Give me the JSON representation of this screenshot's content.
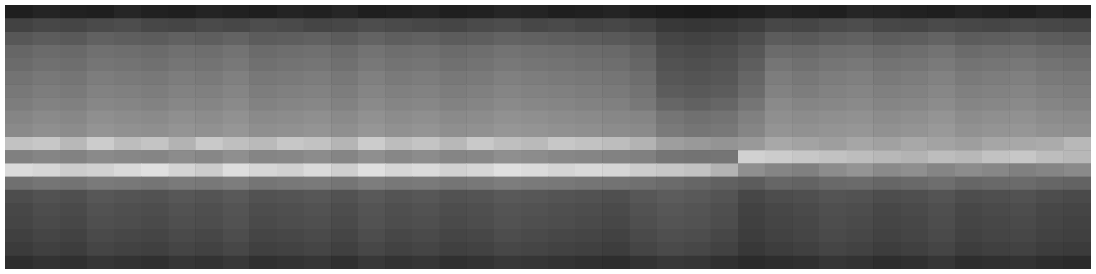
{
  "chart_data": {
    "type": "heatmap",
    "tick_labels": false,
    "xlim": [
      0,
      40
    ],
    "ylim": [
      0,
      20
    ],
    "zlim": [
      0,
      100
    ],
    "cells": [
      [
        12,
        14,
        13,
        12,
        15,
        13,
        12,
        14,
        13,
        12,
        14,
        13,
        15,
        12,
        13,
        14,
        12,
        13,
        15,
        14,
        12,
        13,
        14,
        12,
        11,
        10,
        11,
        12,
        14,
        13,
        12,
        15,
        14,
        13,
        12,
        14,
        13,
        12,
        14,
        13
      ],
      [
        26,
        28,
        27,
        29,
        30,
        28,
        27,
        29,
        28,
        30,
        29,
        27,
        28,
        30,
        29,
        28,
        27,
        29,
        30,
        28,
        29,
        27,
        28,
        26,
        22,
        21,
        22,
        24,
        28,
        27,
        29,
        30,
        28,
        27,
        29,
        28,
        27,
        29,
        28,
        27
      ],
      [
        34,
        36,
        35,
        38,
        37,
        36,
        38,
        37,
        39,
        36,
        37,
        38,
        36,
        39,
        37,
        38,
        36,
        37,
        39,
        38,
        37,
        36,
        35,
        33,
        27,
        26,
        27,
        30,
        36,
        35,
        37,
        38,
        36,
        37,
        39,
        36,
        37,
        38,
        36,
        35
      ],
      [
        40,
        42,
        41,
        44,
        43,
        42,
        44,
        43,
        45,
        42,
        43,
        44,
        42,
        45,
        43,
        44,
        42,
        43,
        45,
        44,
        43,
        42,
        41,
        38,
        30,
        29,
        30,
        34,
        42,
        41,
        43,
        44,
        42,
        43,
        45,
        42,
        43,
        44,
        42,
        41
      ],
      [
        42,
        44,
        43,
        46,
        45,
        44,
        46,
        45,
        47,
        44,
        45,
        46,
        44,
        47,
        45,
        46,
        44,
        45,
        47,
        46,
        45,
        44,
        43,
        40,
        32,
        31,
        32,
        37,
        46,
        44,
        46,
        47,
        45,
        46,
        48,
        45,
        46,
        47,
        45,
        44
      ],
      [
        45,
        47,
        46,
        49,
        48,
        47,
        49,
        48,
        50,
        47,
        48,
        49,
        47,
        50,
        48,
        49,
        47,
        48,
        50,
        49,
        48,
        47,
        46,
        43,
        34,
        33,
        34,
        40,
        49,
        47,
        49,
        50,
        48,
        49,
        51,
        48,
        49,
        50,
        48,
        47
      ],
      [
        47,
        49,
        48,
        51,
        50,
        49,
        51,
        50,
        52,
        49,
        50,
        51,
        49,
        52,
        50,
        51,
        49,
        50,
        52,
        51,
        50,
        49,
        48,
        45,
        36,
        35,
        36,
        42,
        51,
        49,
        51,
        52,
        50,
        51,
        53,
        50,
        51,
        52,
        50,
        49
      ],
      [
        49,
        51,
        50,
        53,
        52,
        51,
        53,
        52,
        54,
        51,
        52,
        53,
        51,
        54,
        52,
        53,
        51,
        52,
        54,
        53,
        52,
        51,
        50,
        47,
        40,
        38,
        40,
        46,
        54,
        52,
        53,
        54,
        52,
        53,
        55,
        52,
        53,
        54,
        52,
        51
      ],
      [
        52,
        54,
        53,
        56,
        55,
        54,
        56,
        55,
        57,
        54,
        55,
        56,
        54,
        57,
        55,
        56,
        54,
        55,
        57,
        56,
        55,
        54,
        53,
        52,
        46,
        44,
        45,
        50,
        56,
        55,
        56,
        57,
        55,
        56,
        58,
        55,
        56,
        57,
        55,
        54
      ],
      [
        54,
        56,
        55,
        58,
        57,
        56,
        58,
        57,
        59,
        56,
        57,
        58,
        56,
        59,
        57,
        58,
        56,
        57,
        59,
        58,
        57,
        56,
        55,
        54,
        48,
        46,
        47,
        52,
        58,
        57,
        58,
        59,
        57,
        58,
        60,
        57,
        58,
        59,
        57,
        56
      ],
      [
        76,
        78,
        72,
        80,
        74,
        77,
        70,
        79,
        75,
        73,
        78,
        76,
        71,
        80,
        74,
        77,
        72,
        79,
        75,
        73,
        78,
        76,
        74,
        70,
        62,
        60,
        58,
        60,
        66,
        64,
        62,
        65,
        63,
        66,
        64,
        62,
        65,
        66,
        67,
        72
      ],
      [
        50,
        52,
        51,
        54,
        53,
        52,
        55,
        53,
        56,
        52,
        53,
        55,
        52,
        56,
        53,
        55,
        52,
        53,
        56,
        55,
        53,
        52,
        51,
        50,
        46,
        45,
        46,
        82,
        80,
        78,
        76,
        74,
        72,
        70,
        74,
        72,
        76,
        78,
        74,
        72
      ],
      [
        86,
        84,
        80,
        82,
        85,
        88,
        83,
        80,
        87,
        84,
        82,
        86,
        81,
        88,
        84,
        86,
        82,
        84,
        88,
        86,
        83,
        85,
        84,
        80,
        78,
        76,
        70,
        56,
        52,
        50,
        55,
        58,
        54,
        56,
        52,
        55,
        53,
        50,
        52,
        54
      ],
      [
        44,
        46,
        45,
        48,
        47,
        46,
        48,
        47,
        49,
        46,
        47,
        48,
        46,
        49,
        47,
        48,
        46,
        47,
        49,
        48,
        47,
        46,
        45,
        44,
        42,
        40,
        38,
        36,
        40,
        39,
        41,
        42,
        40,
        41,
        43,
        40,
        41,
        42,
        40,
        39
      ],
      [
        30,
        32,
        31,
        34,
        33,
        32,
        34,
        33,
        35,
        32,
        33,
        34,
        32,
        35,
        33,
        34,
        32,
        33,
        35,
        34,
        33,
        32,
        31,
        34,
        36,
        35,
        33,
        28,
        30,
        31,
        33,
        32,
        30,
        31,
        33,
        30,
        31,
        32,
        30,
        29
      ],
      [
        28,
        30,
        29,
        32,
        31,
        30,
        32,
        31,
        33,
        30,
        31,
        32,
        30,
        33,
        31,
        32,
        30,
        31,
        33,
        32,
        31,
        30,
        29,
        32,
        34,
        33,
        31,
        26,
        28,
        29,
        31,
        30,
        28,
        29,
        31,
        28,
        29,
        30,
        28,
        27
      ],
      [
        27,
        29,
        28,
        31,
        30,
        29,
        31,
        30,
        32,
        29,
        30,
        31,
        29,
        32,
        30,
        31,
        29,
        30,
        32,
        31,
        30,
        29,
        28,
        31,
        33,
        32,
        30,
        25,
        27,
        28,
        30,
        29,
        27,
        28,
        30,
        27,
        28,
        29,
        27,
        26
      ],
      [
        25,
        27,
        26,
        29,
        28,
        27,
        29,
        28,
        30,
        27,
        28,
        29,
        27,
        30,
        28,
        29,
        27,
        28,
        30,
        29,
        28,
        27,
        26,
        29,
        31,
        30,
        28,
        24,
        26,
        27,
        29,
        28,
        26,
        27,
        29,
        26,
        27,
        28,
        26,
        25
      ],
      [
        23,
        25,
        24,
        27,
        26,
        25,
        27,
        26,
        28,
        25,
        26,
        27,
        25,
        28,
        26,
        27,
        25,
        26,
        28,
        27,
        26,
        25,
        24,
        27,
        29,
        28,
        26,
        22,
        24,
        25,
        27,
        26,
        24,
        25,
        27,
        24,
        25,
        26,
        24,
        23
      ],
      [
        18,
        20,
        19,
        21,
        20,
        19,
        21,
        20,
        22,
        19,
        20,
        21,
        19,
        22,
        20,
        21,
        19,
        20,
        22,
        21,
        20,
        19,
        18,
        20,
        22,
        21,
        19,
        17,
        18,
        19,
        21,
        20,
        18,
        19,
        21,
        18,
        19,
        20,
        18,
        17
      ]
    ]
  }
}
